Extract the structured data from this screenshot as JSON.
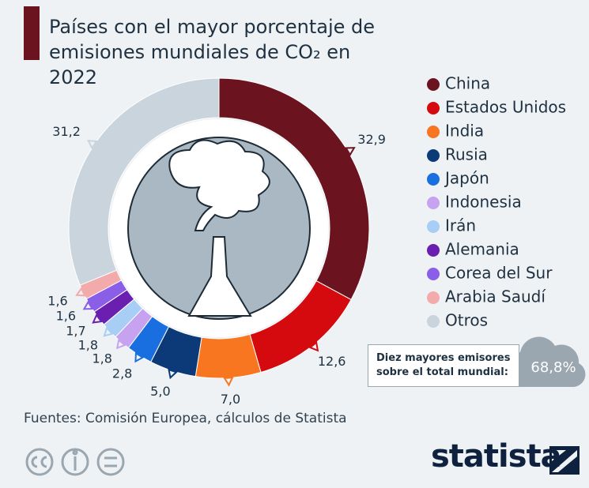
{
  "chart_data": {
    "type": "donut",
    "title": "Países con el mayor porcentaje de emisiones mundiales de CO₂ en 2022",
    "categories": [
      "China",
      "Estados Unidos",
      "India",
      "Rusia",
      "Japón",
      "Indonesia",
      "Irán",
      "Alemania",
      "Corea del Sur",
      "Arabia Saudí",
      "Otros"
    ],
    "values": [
      32.9,
      12.6,
      7.0,
      5.0,
      2.8,
      1.8,
      1.8,
      1.7,
      1.6,
      1.6,
      31.2
    ],
    "value_labels": [
      "32,9",
      "12,6",
      "7,0",
      "5,0",
      "2,8",
      "1,8",
      "1,8",
      "1,7",
      "1,6",
      "1,6",
      "31,2"
    ],
    "colors": [
      "#6b1420",
      "#d40a0f",
      "#f8761f",
      "#0c3a78",
      "#1a6fe0",
      "#c6a2f0",
      "#a8cef5",
      "#6a1fb0",
      "#8a5ee6",
      "#f3aaaa",
      "#c9d4dc"
    ],
    "legend": "right",
    "annotation": {
      "text": "Diez mayores emisores sobre el total mundial:",
      "value": "68,8%"
    },
    "source": "Fuentes: Comisión Europea, cálculos de Statista",
    "brand": "statista"
  }
}
